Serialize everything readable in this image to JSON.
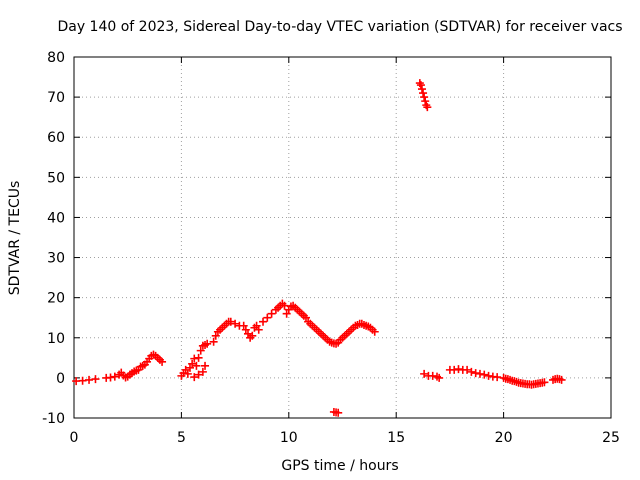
{
  "chart_data": {
    "type": "scatter",
    "title": "Day 140 of 2023, Sidereal Day-to-day VTEC variation (SDTVAR) for receiver vacs",
    "xlabel": "GPS time / hours",
    "ylabel": "SDTVAR / TECUs",
    "xlim": [
      0,
      25
    ],
    "ylim": [
      -10,
      80
    ],
    "xticks": [
      0,
      5,
      10,
      15,
      20,
      25
    ],
    "yticks": [
      -10,
      0,
      10,
      20,
      30,
      40,
      50,
      60,
      70,
      80
    ],
    "grid": true,
    "marker": "plus",
    "color": "#ff0000",
    "series": [
      {
        "name": "SDTVAR",
        "points": [
          [
            0.1,
            -0.8
          ],
          [
            0.4,
            -0.7
          ],
          [
            0.7,
            -0.5
          ],
          [
            1.0,
            -0.3
          ],
          [
            1.5,
            0.0
          ],
          [
            1.7,
            0.1
          ],
          [
            1.9,
            0.3
          ],
          [
            2.1,
            0.8
          ],
          [
            2.2,
            1.3
          ],
          [
            2.3,
            0.6
          ],
          [
            2.4,
            0.1
          ],
          [
            2.5,
            0.3
          ],
          [
            2.6,
            0.8
          ],
          [
            2.7,
            1.2
          ],
          [
            2.8,
            1.6
          ],
          [
            2.9,
            1.8
          ],
          [
            3.0,
            2.0
          ],
          [
            3.1,
            2.8
          ],
          [
            3.2,
            3.0
          ],
          [
            3.3,
            3.3
          ],
          [
            3.4,
            4.0
          ],
          [
            3.5,
            4.8
          ],
          [
            3.6,
            5.5
          ],
          [
            3.7,
            5.8
          ],
          [
            3.8,
            5.5
          ],
          [
            3.9,
            5.0
          ],
          [
            4.0,
            4.5
          ],
          [
            4.1,
            4.0
          ],
          [
            5.0,
            0.5
          ],
          [
            5.1,
            1.2
          ],
          [
            5.2,
            2.0
          ],
          [
            5.3,
            1.0
          ],
          [
            5.4,
            2.5
          ],
          [
            5.5,
            3.5
          ],
          [
            5.6,
            4.8
          ],
          [
            5.7,
            3.0
          ],
          [
            5.8,
            5.0
          ],
          [
            5.9,
            6.8
          ],
          [
            6.0,
            8.0
          ],
          [
            6.1,
            8.2
          ],
          [
            6.2,
            8.5
          ],
          [
            5.6,
            0.2
          ],
          [
            5.8,
            0.8
          ],
          [
            6.0,
            1.5
          ],
          [
            6.1,
            3.0
          ],
          [
            6.5,
            9.0
          ],
          [
            6.6,
            10.5
          ],
          [
            6.7,
            11.5
          ],
          [
            6.8,
            12.0
          ],
          [
            6.9,
            12.5
          ],
          [
            7.0,
            13.0
          ],
          [
            7.1,
            13.5
          ],
          [
            7.2,
            14.0
          ],
          [
            7.3,
            14.0
          ],
          [
            7.5,
            13.5
          ],
          [
            7.7,
            13.0
          ],
          [
            7.9,
            13.0
          ],
          [
            8.0,
            12.0
          ],
          [
            8.1,
            11.0
          ],
          [
            8.2,
            10.0
          ],
          [
            8.3,
            10.5
          ],
          [
            8.4,
            12.5
          ],
          [
            8.5,
            13.0
          ],
          [
            8.6,
            12.0
          ],
          [
            8.8,
            14.0
          ],
          [
            9.0,
            15.0
          ],
          [
            9.2,
            16.0
          ],
          [
            9.4,
            17.0
          ],
          [
            9.5,
            17.5
          ],
          [
            9.6,
            18.0
          ],
          [
            9.7,
            18.5
          ],
          [
            9.8,
            18.0
          ],
          [
            9.9,
            16.0
          ],
          [
            10.0,
            17.0
          ],
          [
            10.1,
            17.8
          ],
          [
            10.2,
            18.0
          ],
          [
            10.3,
            17.5
          ],
          [
            10.4,
            17.0
          ],
          [
            10.5,
            16.5
          ],
          [
            10.6,
            16.0
          ],
          [
            10.7,
            15.5
          ],
          [
            10.8,
            15.0
          ],
          [
            10.9,
            14.0
          ],
          [
            11.0,
            13.5
          ],
          [
            11.1,
            13.0
          ],
          [
            11.2,
            12.5
          ],
          [
            11.3,
            12.0
          ],
          [
            11.4,
            11.5
          ],
          [
            11.5,
            11.0
          ],
          [
            11.6,
            10.5
          ],
          [
            11.7,
            10.0
          ],
          [
            11.8,
            9.5
          ],
          [
            11.9,
            9.0
          ],
          [
            12.0,
            8.8
          ],
          [
            12.1,
            8.6
          ],
          [
            12.2,
            8.5
          ],
          [
            12.3,
            8.8
          ],
          [
            12.4,
            9.5
          ],
          [
            12.5,
            10.0
          ],
          [
            12.6,
            10.5
          ],
          [
            12.7,
            11.0
          ],
          [
            12.8,
            11.5
          ],
          [
            12.9,
            12.0
          ],
          [
            13.0,
            12.5
          ],
          [
            13.1,
            13.0
          ],
          [
            13.2,
            13.2
          ],
          [
            13.3,
            13.5
          ],
          [
            13.4,
            13.5
          ],
          [
            13.5,
            13.2
          ],
          [
            13.6,
            13.0
          ],
          [
            13.7,
            12.8
          ],
          [
            13.8,
            12.5
          ],
          [
            13.9,
            12.0
          ],
          [
            14.0,
            11.5
          ],
          [
            12.1,
            -8.5
          ],
          [
            12.2,
            -8.6
          ],
          [
            12.3,
            -8.7
          ],
          [
            16.1,
            73.5
          ],
          [
            16.15,
            73.0
          ],
          [
            16.2,
            72.0
          ],
          [
            16.25,
            71.0
          ],
          [
            16.3,
            70.0
          ],
          [
            16.35,
            69.0
          ],
          [
            16.4,
            68.0
          ],
          [
            16.45,
            67.5
          ],
          [
            16.3,
            1.0
          ],
          [
            16.5,
            0.5
          ],
          [
            16.7,
            0.5
          ],
          [
            16.9,
            0.3
          ],
          [
            17.0,
            0.0
          ],
          [
            17.5,
            2.0
          ],
          [
            17.7,
            2.0
          ],
          [
            17.9,
            2.2
          ],
          [
            18.1,
            2.0
          ],
          [
            18.3,
            2.0
          ],
          [
            18.5,
            1.5
          ],
          [
            18.7,
            1.2
          ],
          [
            18.9,
            1.0
          ],
          [
            19.1,
            0.8
          ],
          [
            19.3,
            0.5
          ],
          [
            19.5,
            0.3
          ],
          [
            19.7,
            0.2
          ],
          [
            20.0,
            0.0
          ],
          [
            20.1,
            -0.2
          ],
          [
            20.2,
            -0.3
          ],
          [
            20.3,
            -0.5
          ],
          [
            20.4,
            -0.7
          ],
          [
            20.5,
            -0.8
          ],
          [
            20.6,
            -1.0
          ],
          [
            20.7,
            -1.2
          ],
          [
            20.8,
            -1.3
          ],
          [
            20.9,
            -1.4
          ],
          [
            21.0,
            -1.5
          ],
          [
            21.1,
            -1.6
          ],
          [
            21.2,
            -1.6
          ],
          [
            21.3,
            -1.7
          ],
          [
            21.4,
            -1.6
          ],
          [
            21.5,
            -1.5
          ],
          [
            21.6,
            -1.4
          ],
          [
            21.7,
            -1.3
          ],
          [
            21.8,
            -1.2
          ],
          [
            21.9,
            -1.1
          ],
          [
            22.3,
            -0.5
          ],
          [
            22.4,
            -0.3
          ],
          [
            22.5,
            -0.2
          ],
          [
            22.6,
            -0.3
          ],
          [
            22.7,
            -0.5
          ]
        ]
      }
    ]
  }
}
